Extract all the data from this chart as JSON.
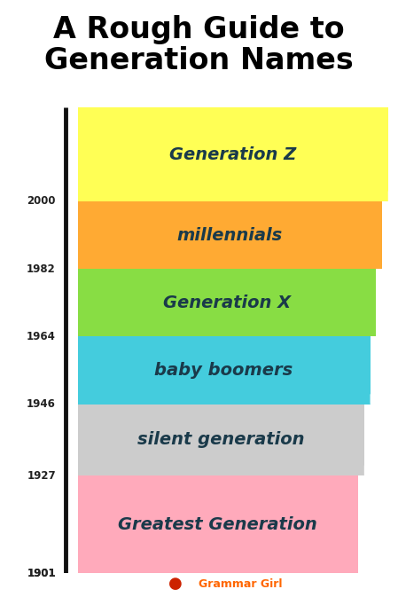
{
  "title": "A Rough Guide to\nGeneration Names",
  "title_fontsize": 24,
  "background_color": "#ffffff",
  "text_color": "#1a3a4a",
  "axis_line_color": "#111111",
  "generations": [
    {
      "name": "Generation Z",
      "color": "#ffff55",
      "year_start": 2000,
      "year_end": 2025,
      "bold": true
    },
    {
      "name": "millennials",
      "color": "#ffaa33",
      "year_start": 1982,
      "year_end": 2000,
      "bold": true
    },
    {
      "name": "Generation X",
      "color": "#88dd44",
      "year_start": 1964,
      "year_end": 1982,
      "bold": true
    },
    {
      "name": "baby boomers",
      "color": "#44ccdd",
      "year_start": 1946,
      "year_end": 1964,
      "bold": true
    },
    {
      "name": "silent generation",
      "color": "#cccccc",
      "year_start": 1927,
      "year_end": 1946,
      "bold": true
    },
    {
      "name": "Greatest Generation",
      "color": "#ffaabb",
      "year_start": 1901,
      "year_end": 1927,
      "bold": true
    }
  ],
  "year_labels": [
    2000,
    1982,
    1964,
    1946,
    1927,
    1901
  ],
  "year_min": 1901,
  "year_max": 2025,
  "footer_text": "Grammar Girl",
  "footer_dot_color": "#cc2200",
  "footer_text_color": "#ff6600"
}
